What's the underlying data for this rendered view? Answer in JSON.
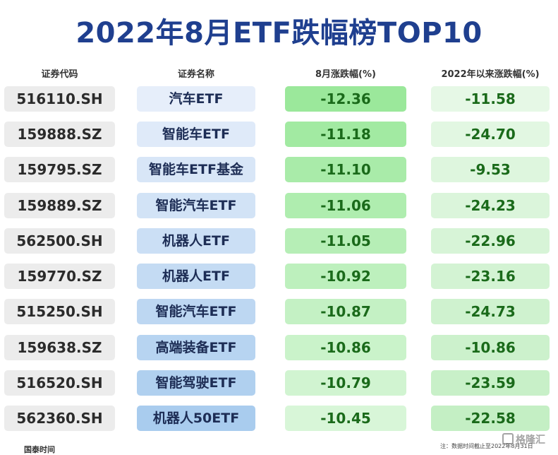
{
  "title": "2022年8月ETF跌幅榜TOP10",
  "headers": {
    "code": "证券代码",
    "name": "证券名称",
    "aug": "8月涨跌幅(%)",
    "ytd": "2022年以来涨跌幅(%)"
  },
  "rows": [
    {
      "code": "516110.SH",
      "name": "汽车ETF",
      "aug": "-12.36",
      "ytd": "-11.58"
    },
    {
      "code": "159888.SZ",
      "name": "智能车ETF",
      "aug": "-11.18",
      "ytd": "-24.70"
    },
    {
      "code": "159795.SZ",
      "name": "智能车ETF基金",
      "aug": "-11.10",
      "ytd": "-9.53"
    },
    {
      "code": "159889.SZ",
      "name": "智能汽车ETF",
      "aug": "-11.06",
      "ytd": "-24.23"
    },
    {
      "code": "562500.SH",
      "name": "机器人ETF",
      "aug": "-11.05",
      "ytd": "-22.96"
    },
    {
      "code": "159770.SZ",
      "name": "机器人ETF",
      "aug": "-10.92",
      "ytd": "-23.16"
    },
    {
      "code": "515250.SH",
      "name": "智能汽车ETF",
      "aug": "-10.87",
      "ytd": "-24.73"
    },
    {
      "code": "159638.SZ",
      "name": "高端装备ETF",
      "aug": "-10.86",
      "ytd": "-10.86"
    },
    {
      "code": "516520.SH",
      "name": "智能驾驶ETF",
      "aug": "-10.79",
      "ytd": "-23.59"
    },
    {
      "code": "562360.SH",
      "name": "机器人50ETF",
      "aug": "-10.45",
      "ytd": "-22.58"
    }
  ],
  "colors": {
    "title": "#1f3f8f",
    "name_bg_light": "#e6eefa",
    "name_bg_dark": "#a9ccee",
    "aug_bg_strong": "#9be89b",
    "aug_bg_light": "#d8f6d8",
    "ytd_bg_light": "#e6f8e6",
    "ytd_bg_strong": "#c4efc4"
  },
  "footer": {
    "left": "国泰时间",
    "note": "注：数据时间截止至2022年8月31日",
    "watermark": "格隆汇"
  }
}
